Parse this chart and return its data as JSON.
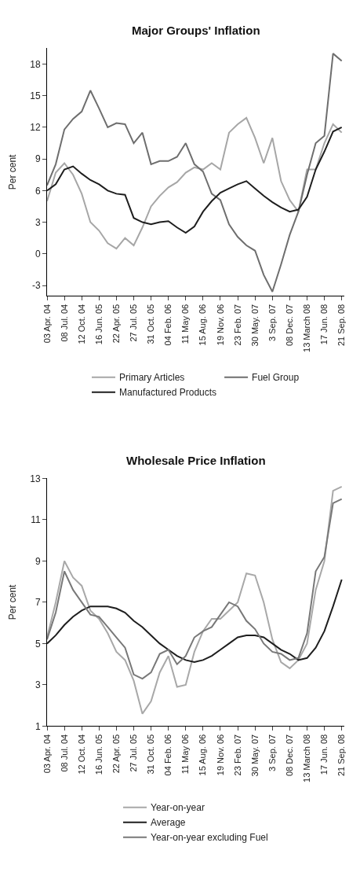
{
  "chart_data": [
    {
      "type": "line",
      "title": "Major Groups' Inflation",
      "ylabel": "Per cent",
      "categories": [
        "03 Apr. 04",
        null,
        "08 Jul. 04",
        null,
        "12 Oct. 04",
        null,
        "16 Jun. 05",
        null,
        "22 Apr. 05",
        null,
        "27 Jul. 05",
        null,
        "31 Oct. 05",
        null,
        "04 Feb. 06",
        null,
        "11 May 06",
        null,
        "15 Aug. 06",
        null,
        "19 Nov. 06",
        null,
        "23 Feb. 07",
        null,
        "30 May. 07",
        null,
        "3 Sep. 07",
        null,
        "08 Dec. 07",
        null,
        "13 March 08",
        null,
        "17 Jun. 08",
        null,
        "21 Sep. 08"
      ],
      "ylim": [
        -4,
        19.5
      ],
      "yticks": [
        -3,
        0,
        3,
        6,
        9,
        12,
        15,
        18
      ],
      "legend": "bottom",
      "series": [
        {
          "name": "Primary Articles",
          "color": "#a6a6a6",
          "values": [
            5.0,
            7.7,
            8.6,
            7.5,
            5.7,
            3.0,
            2.2,
            1.0,
            0.5,
            1.5,
            0.8,
            2.5,
            4.5,
            5.5,
            6.3,
            6.8,
            7.7,
            8.2,
            8.0,
            8.6,
            8.0,
            11.5,
            12.3,
            12.9,
            11.0,
            8.6,
            11.0,
            6.9,
            5.1,
            4.0,
            8.0,
            8.0,
            10.5,
            12.3,
            11.5
          ]
        },
        {
          "name": "Fuel Group",
          "color": "#6e6e6e",
          "values": [
            6.5,
            8.5,
            11.8,
            12.8,
            13.5,
            15.5,
            13.8,
            12.0,
            12.4,
            12.3,
            10.5,
            11.5,
            8.5,
            8.8,
            8.8,
            9.2,
            10.5,
            8.5,
            7.8,
            5.7,
            5.1,
            2.8,
            1.6,
            0.8,
            0.3,
            -2.0,
            -3.6,
            -1.0,
            1.8,
            4.0,
            7.5,
            10.5,
            11.2,
            19.0,
            18.3
          ]
        },
        {
          "name": "Manufactured Products",
          "color": "#1e1e1e",
          "values": [
            6.0,
            6.6,
            8.0,
            8.3,
            7.6,
            7.0,
            6.6,
            6.0,
            5.7,
            5.6,
            3.4,
            3.0,
            2.8,
            3.0,
            3.1,
            2.5,
            2.0,
            2.6,
            4.0,
            5.0,
            5.8,
            6.2,
            6.6,
            6.9,
            6.2,
            5.5,
            4.9,
            4.4,
            4.0,
            4.2,
            5.4,
            8.0,
            9.7,
            11.6,
            12.0
          ]
        }
      ]
    },
    {
      "type": "line",
      "title": "Wholesale Price Inflation",
      "ylabel": "Per cent",
      "categories": [
        "03 Apr. 04",
        null,
        "08 Jul. 04",
        null,
        "12 Oct. 04",
        null,
        "16 Jun. 05",
        null,
        "22 Apr. 05",
        null,
        "27 Jul. 05",
        null,
        "31 Oct. 05",
        null,
        "04 Feb. 06",
        null,
        "11 May 06",
        null,
        "15 Aug. 06",
        null,
        "19 Nov. 06",
        null,
        "23 Feb. 07",
        null,
        "30 May. 07",
        null,
        "3 Sep. 07",
        null,
        "08 Dec. 07",
        null,
        "13 March 08",
        null,
        "17 Jun. 08",
        null,
        "21 Sep. 08"
      ],
      "ylim": [
        1,
        13
      ],
      "yticks": [
        1,
        3,
        5,
        7,
        9,
        11,
        13
      ],
      "legend": "bottom",
      "series": [
        {
          "name": "Year-on-year",
          "color": "#a8a8a8",
          "values": [
            5.3,
            7.0,
            9.0,
            8.2,
            7.8,
            6.6,
            6.2,
            5.5,
            4.6,
            4.2,
            3.2,
            1.6,
            2.2,
            3.6,
            4.4,
            2.9,
            3.0,
            4.6,
            5.6,
            6.2,
            6.2,
            6.6,
            7.0,
            8.4,
            8.3,
            7.0,
            5.2,
            4.1,
            3.8,
            4.2,
            5.0,
            7.6,
            9.0,
            12.4,
            12.6
          ]
        },
        {
          "name": "Average",
          "color": "#1e1e1e",
          "values": [
            5.0,
            5.4,
            5.9,
            6.3,
            6.6,
            6.8,
            6.8,
            6.8,
            6.7,
            6.5,
            6.1,
            5.8,
            5.4,
            5.0,
            4.7,
            4.4,
            4.2,
            4.1,
            4.2,
            4.4,
            4.7,
            5.0,
            5.3,
            5.4,
            5.4,
            5.3,
            5.0,
            4.7,
            4.5,
            4.2,
            4.3,
            4.8,
            5.6,
            6.8,
            8.1
          ]
        },
        {
          "name": "Year-on-year excluding Fuel",
          "color": "#787878",
          "values": [
            5.2,
            6.5,
            8.5,
            7.6,
            7.0,
            6.4,
            6.3,
            5.8,
            5.3,
            4.8,
            3.5,
            3.3,
            3.6,
            4.5,
            4.7,
            4.0,
            4.4,
            5.3,
            5.6,
            5.8,
            6.4,
            7.0,
            6.8,
            6.1,
            5.7,
            5.0,
            4.6,
            4.5,
            4.2,
            4.3,
            5.5,
            8.5,
            9.2,
            11.8,
            12.0
          ]
        }
      ]
    }
  ]
}
